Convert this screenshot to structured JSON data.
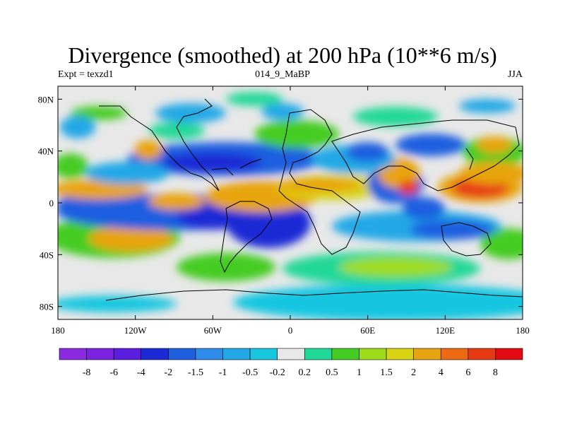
{
  "title": "Divergence (smoothed) at 200 hPa (10**6 m/s)",
  "left_label": "Expt = texzd1",
  "center_label": "014_9_MaBP",
  "right_label": "JJA",
  "lat_ticks": [
    "80N",
    "40N",
    "0",
    "40S",
    "80S"
  ],
  "lon_ticks": [
    "180",
    "120W",
    "60W",
    "0",
    "60E",
    "120E",
    "180"
  ],
  "colorbar": {
    "labels": [
      "-8",
      "-6",
      "-4",
      "-2",
      "-1.5",
      "-1",
      "-0.5",
      "-0.2",
      "0.2",
      "0.5",
      "1",
      "1.5",
      "2",
      "4",
      "6",
      "8"
    ],
    "colors": [
      "#8a2be2",
      "#7a22e0",
      "#5a1ee0",
      "#1c2ad6",
      "#1e5fe0",
      "#2e8bea",
      "#22a8e6",
      "#19c6e0",
      "#e8e8e8",
      "#20d898",
      "#44cc22",
      "#9edc1a",
      "#d8d414",
      "#e8a410",
      "#ee6a12",
      "#e83a12",
      "#e00a10"
    ]
  }
}
